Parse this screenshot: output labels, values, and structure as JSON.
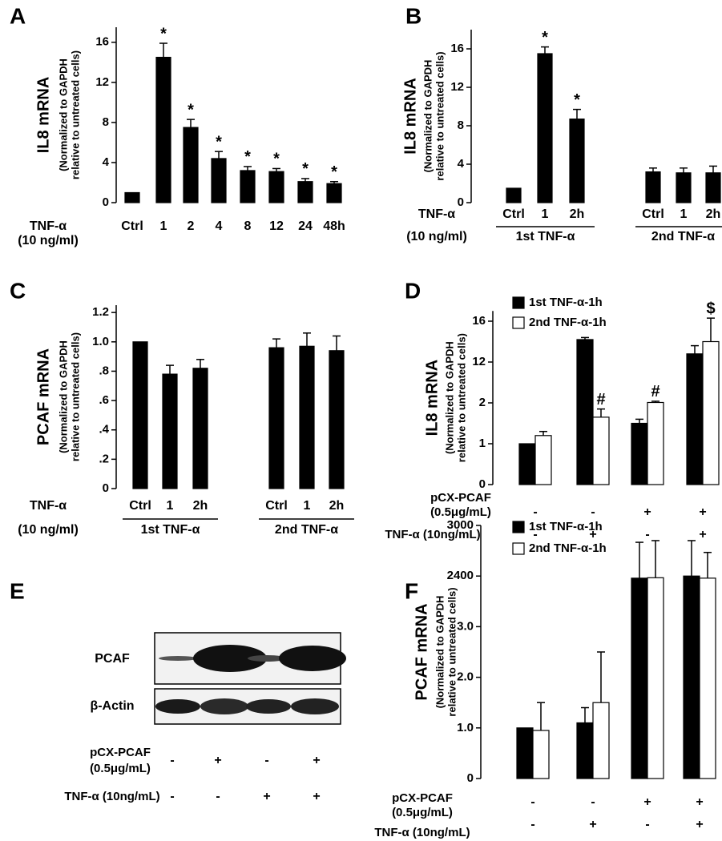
{
  "chart_data": [
    {
      "type": "bar",
      "label": "A",
      "ylabel": "IL8 mRNA",
      "ylabel_note": [
        "(Normalized to GAPDH",
        "relative to untreated cells)"
      ],
      "row_label": [
        "TNF-α",
        "(10 ng/ml)"
      ],
      "color": "#000000",
      "categories": [
        "Ctrl",
        "1",
        "2",
        "4",
        "8",
        "12",
        "24",
        "48h"
      ],
      "values": [
        1,
        14.5,
        7.5,
        4.4,
        3.2,
        3.1,
        2.1,
        1.9
      ],
      "errors": [
        null,
        1.4,
        0.8,
        0.7,
        0.4,
        0.3,
        0.3,
        0.2
      ],
      "annotations": [
        null,
        "*",
        "*",
        "*",
        "*",
        "*",
        "*",
        "*"
      ],
      "ylim": [
        0,
        17.5
      ],
      "yticks": [
        0,
        4,
        8,
        12,
        16
      ]
    },
    {
      "type": "bar",
      "label": "B",
      "ylabel": "IL8 mRNA",
      "ylabel_note": [
        "(Normalized to GAPDH",
        "relative to untreated cells)"
      ],
      "row_label": [
        "TNF-α",
        "(10 ng/ml)"
      ],
      "color": "#000000",
      "groups": [
        {
          "name": "1st TNF-α",
          "categories": [
            "Ctrl",
            "1",
            "2h"
          ],
          "values": [
            1.5,
            15.5,
            8.7
          ],
          "errors": [
            null,
            0.7,
            1.0
          ],
          "annotations": [
            null,
            "*",
            "*"
          ]
        },
        {
          "name": "2nd TNF-α",
          "categories": [
            "Ctrl",
            "1",
            "2h"
          ],
          "values": [
            3.2,
            3.1,
            3.1
          ],
          "errors": [
            0.4,
            0.5,
            0.7
          ]
        }
      ],
      "ylim": [
        0,
        18
      ],
      "yticks": [
        0,
        4,
        8,
        12,
        16
      ]
    },
    {
      "type": "bar",
      "label": "C",
      "ylabel": "PCAF mRNA",
      "ylabel_note": [
        "(Normalized to GAPDH",
        "relative to untreated cells)"
      ],
      "row_label": [
        "TNF-α",
        "(10 ng/ml)"
      ],
      "color": "#000000",
      "groups": [
        {
          "name": "1st TNF-α",
          "categories": [
            "Ctrl",
            "1",
            "2h"
          ],
          "values": [
            1.0,
            0.78,
            0.82
          ],
          "errors": [
            null,
            0.06,
            0.06
          ]
        },
        {
          "name": "2nd TNF-α",
          "categories": [
            "Ctrl",
            "1",
            "2h"
          ],
          "values": [
            0.96,
            0.97,
            0.94
          ],
          "errors": [
            0.06,
            0.09,
            0.1
          ]
        }
      ],
      "ylim": [
        0,
        1.25
      ],
      "yticks": [
        0,
        {
          "value": 0.2,
          "label": ".2"
        },
        {
          "value": 0.4,
          "label": ".4"
        },
        {
          "value": 0.6,
          "label": ".6"
        },
        {
          "value": 0.8,
          "label": ".8"
        },
        {
          "value": 1.0,
          "label": "1.0"
        },
        {
          "value": 1.2,
          "label": "1.2"
        }
      ]
    },
    {
      "type": "grouped_bar",
      "label": "D",
      "ylabel": "IL8 mRNA",
      "ylabel_note": [
        "(Normalized to GAPDH",
        "relative to untreated cells)"
      ],
      "scale": "segmented",
      "series": [
        {
          "name": "1st TNF-α-1h",
          "color": "#000000",
          "values": [
            1.0,
            14.2,
            1.5,
            12.8
          ],
          "errors": [
            null,
            0.2,
            0.1,
            0.8
          ]
        },
        {
          "name": "2nd TNF-α-1h",
          "color": "#ffffff",
          "values": [
            1.2,
            1.65,
            2.1,
            14.0
          ],
          "errors": [
            0.1,
            0.2,
            0.3,
            2.3
          ],
          "annotations": [
            null,
            "#",
            "#",
            "$"
          ]
        }
      ],
      "conditions": [
        {
          "label": [
            "pCX-PCAF",
            "(0.5μg/mL)"
          ],
          "signs": [
            "-",
            "-",
            "+",
            "+"
          ]
        },
        {
          "label": "TNF-α (10ng/mL)",
          "signs": [
            "-",
            "+",
            "-",
            "+"
          ]
        }
      ],
      "ylim": [
        0,
        17
      ],
      "yticks": [
        0,
        1,
        2,
        12,
        16
      ]
    },
    {
      "type": "blot",
      "label": "E",
      "rows": [
        "PCAF",
        "β-Actin"
      ],
      "conditions": [
        {
          "label": [
            "pCX-PCAF",
            "(0.5μg/mL)"
          ],
          "signs": [
            "-",
            "+",
            "-",
            "+"
          ]
        },
        {
          "label": "TNF-α (10ng/mL)",
          "signs": [
            "-",
            "-",
            "+",
            "+"
          ]
        }
      ]
    },
    {
      "type": "grouped_bar",
      "label": "F",
      "ylabel": "PCAF mRNA",
      "ylabel_note": [
        "(Normalized to GAPDH",
        "relative to untreated cells)"
      ],
      "scale": "segmented",
      "series": [
        {
          "name": "1st TNF-α-1h",
          "color": "#000000",
          "values": [
            1.0,
            1.1,
            2300,
            2400
          ],
          "errors": [
            null,
            0.3,
            500,
            420
          ]
        },
        {
          "name": "2nd TNF-α-1h",
          "color": "#ffffff",
          "values": [
            0.95,
            1.5,
            2320,
            2300
          ],
          "errors": [
            0.55,
            1.0,
            500,
            380
          ]
        }
      ],
      "conditions": [
        {
          "label": [
            "pCX-PCAF",
            "(0.5μg/mL)"
          ],
          "signs": [
            "-",
            "-",
            "+",
            "+"
          ]
        },
        {
          "label": "TNF-α (10ng/mL)",
          "signs": [
            "-",
            "+",
            "-",
            "+"
          ]
        }
      ],
      "ylim": [
        0,
        3000
      ],
      "yticks": [
        0,
        {
          "value": 1,
          "label": "1.0"
        },
        {
          "value": 2,
          "label": "2.0"
        },
        {
          "value": 3,
          "label": "3.0"
        },
        2400,
        3000
      ]
    }
  ]
}
